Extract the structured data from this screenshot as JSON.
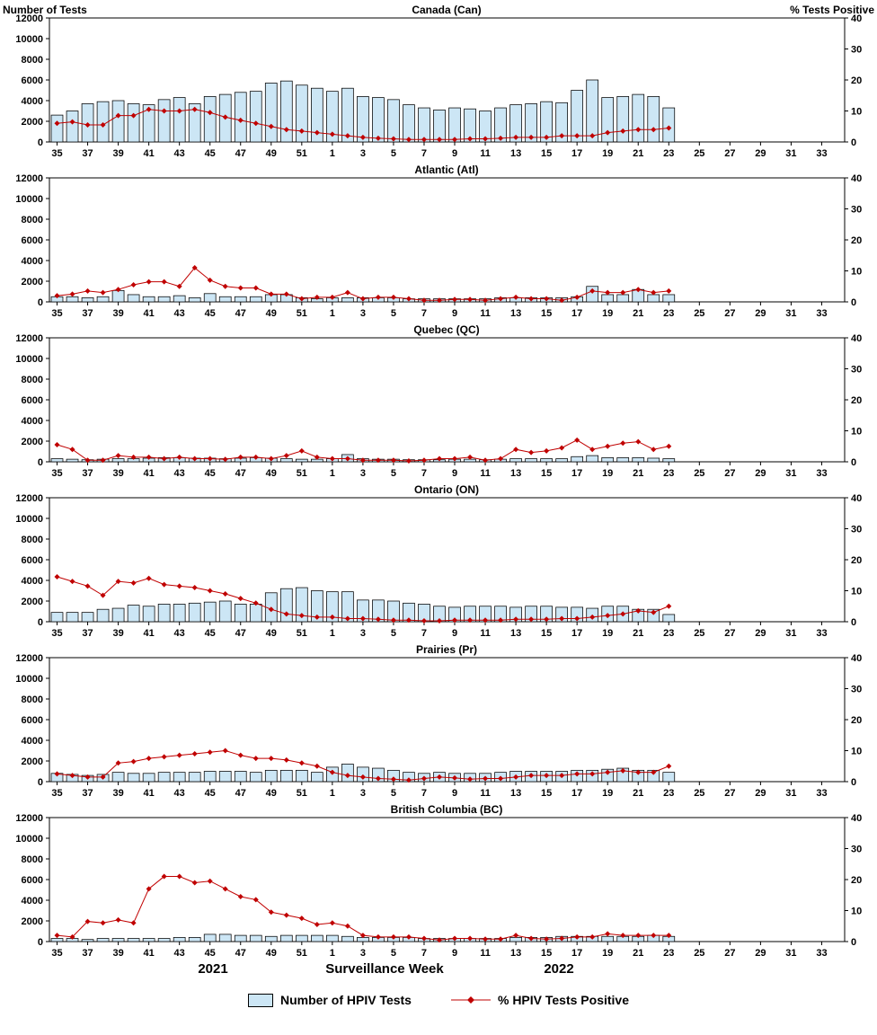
{
  "page": {
    "left_axis_title": "Number of Tests",
    "right_axis_title": "% Tests Positive",
    "x_axis_label": "Surveillance Week",
    "year_left": "2021",
    "year_right": "2022",
    "legend": {
      "bars": "Number of HPIV Tests",
      "line": "% HPIV Tests Positive"
    },
    "colors": {
      "bar_fill": "#cce6f5",
      "bar_border": "#000000",
      "line": "#c00000"
    }
  },
  "axes": {
    "total_slots": 52,
    "y_left": {
      "min": 0,
      "max": 12000,
      "step": 2000
    },
    "y_right": {
      "min": 0,
      "max": 40,
      "step": 10
    },
    "x_tick_labels": [
      "35",
      "37",
      "39",
      "41",
      "43",
      "45",
      "47",
      "49",
      "51",
      "1",
      "3",
      "5",
      "7",
      "9",
      "11",
      "13",
      "15",
      "17",
      "19",
      "21",
      "23",
      "25",
      "27",
      "29",
      "31",
      "33"
    ]
  },
  "chart_data": [
    {
      "type": "bar+line",
      "title": "Canada (Can)",
      "bar_series": "Number of HPIV Tests",
      "line_series": "% HPIV Tests Positive",
      "tests": [
        2600,
        3000,
        3700,
        3900,
        4000,
        3700,
        3600,
        4100,
        4300,
        3700,
        4400,
        4600,
        4800,
        4900,
        5700,
        5900,
        5500,
        5200,
        4900,
        5200,
        4400,
        4300,
        4100,
        3600,
        3300,
        3100,
        3300,
        3200,
        3000,
        3300,
        3600,
        3700,
        3900,
        3800,
        5000,
        6000,
        4300,
        4400,
        4600,
        4400,
        3300
      ],
      "pct_positive": [
        6,
        6.5,
        5.5,
        5.5,
        8.5,
        8.5,
        10.5,
        10,
        10,
        10.5,
        9.5,
        8,
        7,
        6,
        5,
        4,
        3.5,
        3,
        2.5,
        2,
        1.5,
        1.2,
        1,
        0.8,
        0.8,
        0.8,
        0.8,
        1,
        1,
        1.2,
        1.5,
        1.5,
        1.5,
        2,
        2,
        2,
        3,
        3.5,
        4,
        4,
        4.5
      ]
    },
    {
      "type": "bar+line",
      "title": "Atlantic (Atl)",
      "bar_series": "Number of HPIV Tests",
      "line_series": "% HPIV Tests Positive",
      "tests": [
        500,
        500,
        400,
        500,
        1100,
        700,
        500,
        500,
        600,
        400,
        800,
        500,
        500,
        500,
        700,
        700,
        400,
        300,
        400,
        400,
        400,
        400,
        400,
        300,
        300,
        300,
        300,
        300,
        300,
        400,
        400,
        400,
        400,
        400,
        500,
        1500,
        700,
        700,
        1200,
        700,
        700
      ],
      "pct_positive": [
        2,
        2.5,
        3.5,
        3,
        4,
        5.5,
        6.5,
        6.5,
        5,
        11,
        7,
        5,
        4.5,
        4.5,
        2.5,
        2.5,
        1,
        1.5,
        1.5,
        3,
        1,
        1.5,
        1.5,
        1,
        0.5,
        0.5,
        0.8,
        0.8,
        0.5,
        1,
        1.5,
        1,
        1,
        0.5,
        1.5,
        3.5,
        3,
        3,
        4,
        3,
        3.5
      ]
    },
    {
      "type": "bar+line",
      "title": "Quebec (QC)",
      "bar_series": "Number of HPIV Tests",
      "line_series": "% HPIV Tests Positive",
      "tests": [
        300,
        250,
        200,
        250,
        300,
        300,
        350,
        400,
        400,
        350,
        350,
        300,
        350,
        400,
        350,
        300,
        250,
        250,
        300,
        700,
        300,
        250,
        250,
        200,
        200,
        200,
        250,
        250,
        200,
        250,
        300,
        300,
        300,
        300,
        500,
        600,
        400,
        400,
        400,
        350,
        300
      ],
      "pct_positive": [
        5.5,
        4,
        0.5,
        0.5,
        2,
        1.5,
        1.5,
        1,
        1.5,
        1,
        1,
        0.8,
        1.5,
        1.5,
        1,
        2,
        3.5,
        1.5,
        1,
        1,
        0.5,
        0.5,
        0.5,
        0.3,
        0.5,
        1,
        1,
        1.5,
        0.5,
        1,
        4,
        3,
        3.5,
        4.5,
        7,
        4,
        5,
        6,
        6.5,
        4,
        5
      ]
    },
    {
      "type": "bar+line",
      "title": "Ontario (ON)",
      "bar_series": "Number of HPIV Tests",
      "line_series": "% HPIV Tests Positive",
      "tests": [
        900,
        900,
        900,
        1200,
        1300,
        1600,
        1500,
        1700,
        1700,
        1800,
        1900,
        2000,
        1700,
        1700,
        2800,
        3200,
        3300,
        3000,
        2900,
        2900,
        2100,
        2100,
        2000,
        1800,
        1700,
        1500,
        1400,
        1500,
        1500,
        1500,
        1400,
        1500,
        1500,
        1400,
        1400,
        1300,
        1500,
        1500,
        1200,
        1200,
        700
      ],
      "pct_positive": [
        14.5,
        13,
        11.5,
        8.5,
        13,
        12.5,
        14,
        12,
        11.5,
        11,
        10,
        9,
        7.5,
        6,
        4,
        2.5,
        2,
        1.5,
        1.5,
        1,
        1,
        0.8,
        0.5,
        0.5,
        0.3,
        0.3,
        0.5,
        0.5,
        0.5,
        0.5,
        0.8,
        0.8,
        0.8,
        1,
        1,
        1.5,
        2,
        2.5,
        3.5,
        3,
        5
      ]
    },
    {
      "type": "bar+line",
      "title": "Prairies (Pr)",
      "bar_series": "Number of HPIV Tests",
      "line_series": "% HPIV Tests Positive",
      "tests": [
        800,
        700,
        600,
        700,
        900,
        800,
        800,
        900,
        900,
        900,
        1000,
        1000,
        1000,
        900,
        1100,
        1100,
        1100,
        900,
        1400,
        1700,
        1400,
        1300,
        1100,
        900,
        800,
        900,
        800,
        800,
        800,
        900,
        1000,
        1000,
        1000,
        1000,
        1100,
        1100,
        1200,
        1300,
        1100,
        1100,
        900
      ],
      "pct_positive": [
        2.5,
        2,
        1.5,
        1.5,
        6,
        6.5,
        7.5,
        8,
        8.5,
        9,
        9.5,
        10,
        8.5,
        7.5,
        7.5,
        7,
        6,
        5,
        3,
        2,
        1.5,
        1,
        0.8,
        0.5,
        1,
        1.5,
        1.2,
        0.8,
        1,
        1,
        1.5,
        2,
        2,
        2,
        2.5,
        2.5,
        3,
        3.5,
        3,
        3,
        5
      ]
    },
    {
      "type": "bar+line",
      "title": "British Columbia (BC)",
      "bar_series": "Number of HPIV Tests",
      "line_series": "% HPIV Tests Positive",
      "tests": [
        300,
        300,
        200,
        300,
        300,
        300,
        300,
        300,
        400,
        400,
        700,
        700,
        600,
        600,
        500,
        600,
        600,
        600,
        600,
        500,
        400,
        400,
        400,
        400,
        300,
        300,
        300,
        300,
        300,
        300,
        400,
        400,
        400,
        500,
        500,
        500,
        500,
        500,
        500,
        600,
        500
      ],
      "pct_positive": [
        2,
        1.5,
        6.5,
        6,
        7,
        6,
        17,
        21,
        21,
        19,
        19.5,
        17,
        14.5,
        13.5,
        9.5,
        8.5,
        7.5,
        5.5,
        6,
        5,
        2,
        1.5,
        1.5,
        1.5,
        1,
        0.5,
        1,
        1,
        0.8,
        0.8,
        2,
        1,
        0.8,
        1,
        1.5,
        1.5,
        2.5,
        2,
        2,
        2,
        2
      ]
    }
  ]
}
